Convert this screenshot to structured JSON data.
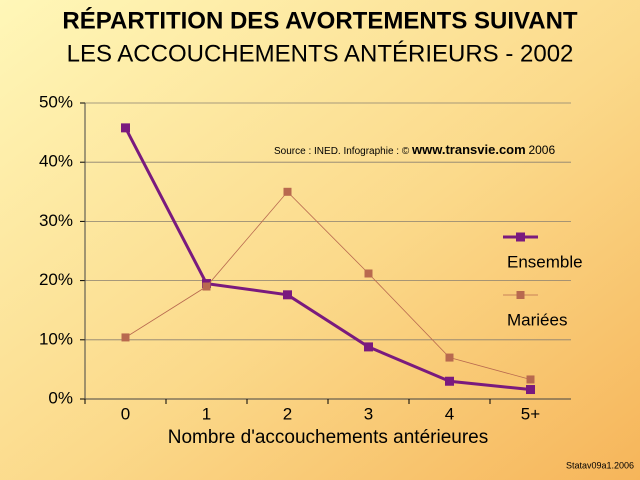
{
  "chart_data": {
    "type": "line",
    "title": "RÉPARTITION DES AVORTEMENTS SUIVANT",
    "subtitle": "LES ACCOUCHEMENTS ANTÉRIEURS - 2002",
    "x_label": "Nombre d'accouchements antérieures",
    "annotation": {
      "source": "Source : INED. Infographie : ©",
      "site": "www.transvie.com",
      "year": "2006"
    },
    "footer": "Statav09a1.2006",
    "categories": [
      "0",
      "1",
      "2",
      "3",
      "4",
      "5+"
    ],
    "series": [
      {
        "name": "Ensemble",
        "color": "#7a1a7e",
        "values": [
          45.8,
          19.5,
          17.6,
          8.8,
          3.0,
          1.6
        ]
      },
      {
        "name": "Mariées",
        "color": "#b8694f",
        "values": [
          10.4,
          19.0,
          35.0,
          21.2,
          7.0,
          3.3
        ]
      }
    ],
    "ylim": [
      0,
      50
    ],
    "yticks": [
      {
        "value": 0,
        "label": "0%"
      },
      {
        "value": 10,
        "label": "10%"
      },
      {
        "value": 20,
        "label": "20%"
      },
      {
        "value": 30,
        "label": "30%"
      },
      {
        "value": 40,
        "label": "40%"
      },
      {
        "value": 50,
        "label": "50%"
      }
    ],
    "grid": true,
    "legend": "right"
  }
}
